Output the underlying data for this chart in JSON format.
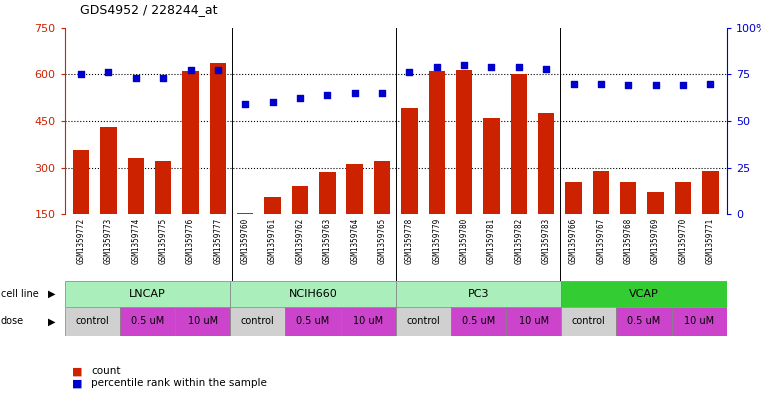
{
  "title": "GDS4952 / 228244_at",
  "samples": [
    "GSM1359772",
    "GSM1359773",
    "GSM1359774",
    "GSM1359775",
    "GSM1359776",
    "GSM1359777",
    "GSM1359760",
    "GSM1359761",
    "GSM1359762",
    "GSM1359763",
    "GSM1359764",
    "GSM1359765",
    "GSM1359778",
    "GSM1359779",
    "GSM1359780",
    "GSM1359781",
    "GSM1359782",
    "GSM1359783",
    "GSM1359766",
    "GSM1359767",
    "GSM1359768",
    "GSM1359769",
    "GSM1359770",
    "GSM1359771"
  ],
  "counts": [
    355,
    430,
    330,
    320,
    610,
    635,
    155,
    205,
    240,
    285,
    310,
    320,
    490,
    610,
    615,
    460,
    600,
    475,
    255,
    290,
    255,
    220,
    255,
    290
  ],
  "percentiles": [
    75,
    76,
    73,
    73,
    77,
    77,
    59,
    60,
    62,
    64,
    65,
    65,
    76,
    79,
    80,
    79,
    79,
    78,
    70,
    70,
    69,
    69,
    69,
    70
  ],
  "cell_lines": [
    {
      "name": "LNCAP",
      "start": 0,
      "end": 6,
      "color": "#AAEEBB"
    },
    {
      "name": "NCIH660",
      "start": 6,
      "end": 12,
      "color": "#AAEEBB"
    },
    {
      "name": "PC3",
      "start": 12,
      "end": 18,
      "color": "#AAEEBB"
    },
    {
      "name": "VCAP",
      "start": 18,
      "end": 24,
      "color": "#33CC33"
    }
  ],
  "doses": [
    {
      "label": "control",
      "start": 0,
      "end": 2,
      "bg": "light"
    },
    {
      "label": "0.5 uM",
      "start": 2,
      "end": 4,
      "bg": "pink"
    },
    {
      "label": "10 uM",
      "start": 4,
      "end": 6,
      "bg": "pink"
    },
    {
      "label": "control",
      "start": 6,
      "end": 8,
      "bg": "light"
    },
    {
      "label": "0.5 uM",
      "start": 8,
      "end": 10,
      "bg": "pink"
    },
    {
      "label": "10 uM",
      "start": 10,
      "end": 12,
      "bg": "pink"
    },
    {
      "label": "control",
      "start": 12,
      "end": 14,
      "bg": "light"
    },
    {
      "label": "0.5 uM",
      "start": 14,
      "end": 16,
      "bg": "pink"
    },
    {
      "label": "10 uM",
      "start": 16,
      "end": 18,
      "bg": "pink"
    },
    {
      "label": "control",
      "start": 18,
      "end": 20,
      "bg": "light"
    },
    {
      "label": "0.5 uM",
      "start": 20,
      "end": 22,
      "bg": "pink"
    },
    {
      "label": "10 uM",
      "start": 22,
      "end": 24,
      "bg": "pink"
    }
  ],
  "ylim_left": [
    150,
    750
  ],
  "ylim_right": [
    0,
    100
  ],
  "yticks_left": [
    150,
    300,
    450,
    600,
    750
  ],
  "yticks_right": [
    0,
    25,
    50,
    75,
    100
  ],
  "hgrid_at": [
    300,
    450,
    600
  ],
  "bar_color": "#CC2200",
  "dot_color": "#0000CC",
  "control_color": "#D0D0D0",
  "dose_color": "#CC44CC",
  "cl_light_color": "#AAEEBB",
  "cl_dark_color": "#33CC33"
}
